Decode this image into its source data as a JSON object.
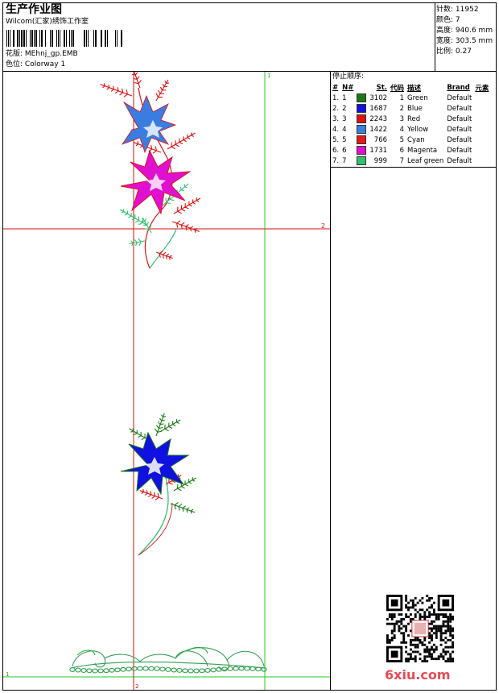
{
  "header": {
    "title": "生产作业图",
    "company": "Wilcom(汇家)绣饰工作室",
    "design_label": "花版:",
    "design_file": "MEhnj_gp.EMB",
    "colorway_label": "色位:",
    "colorway": "Colorway 1"
  },
  "stats": [
    {
      "label": "针数:",
      "value": "11952"
    },
    {
      "label": "颜色:",
      "value": "7"
    },
    {
      "label": "高度:",
      "value": "940.6 mm"
    },
    {
      "label": "宽度:",
      "value": "303.5 mm"
    },
    {
      "label": "比例:",
      "value": "0.27"
    }
  ],
  "stop_sequence": {
    "title": "停止顺序:",
    "columns": [
      "#",
      "N#",
      "St.",
      "代码",
      "描述",
      "Brand",
      "元素"
    ],
    "rows": [
      {
        "idx": "1.",
        "n": "1",
        "color": "#1a7a1a",
        "st": "3102",
        "code": "1",
        "desc": "Green",
        "brand": "Default"
      },
      {
        "idx": "2.",
        "n": "2",
        "color": "#1010e0",
        "st": "1687",
        "code": "2",
        "desc": "Blue",
        "brand": "Default"
      },
      {
        "idx": "3.",
        "n": "3",
        "color": "#e01010",
        "st": "2243",
        "code": "3",
        "desc": "Red",
        "brand": "Default"
      },
      {
        "idx": "4.",
        "n": "4",
        "color": "#3a7de0",
        "st": "1422",
        "code": "4",
        "desc": "Yellow",
        "brand": "Default"
      },
      {
        "idx": "5.",
        "n": "5",
        "color": "#e81818",
        "st": "766",
        "code": "5",
        "desc": "Cyan",
        "brand": "Default"
      },
      {
        "idx": "6.",
        "n": "6",
        "color": "#e010d0",
        "st": "1731",
        "code": "6",
        "desc": "Magenta",
        "brand": "Default"
      },
      {
        "idx": "7.",
        "n": "7",
        "color": "#30c070",
        "st": "999",
        "code": "7",
        "desc": "Leaf green",
        "brand": "Default"
      }
    ]
  },
  "guides": {
    "v_green_label": "1",
    "h_red_label": "2",
    "h_green_label": "1",
    "v_red_label": "2"
  },
  "watermark": "6xiu.com"
}
